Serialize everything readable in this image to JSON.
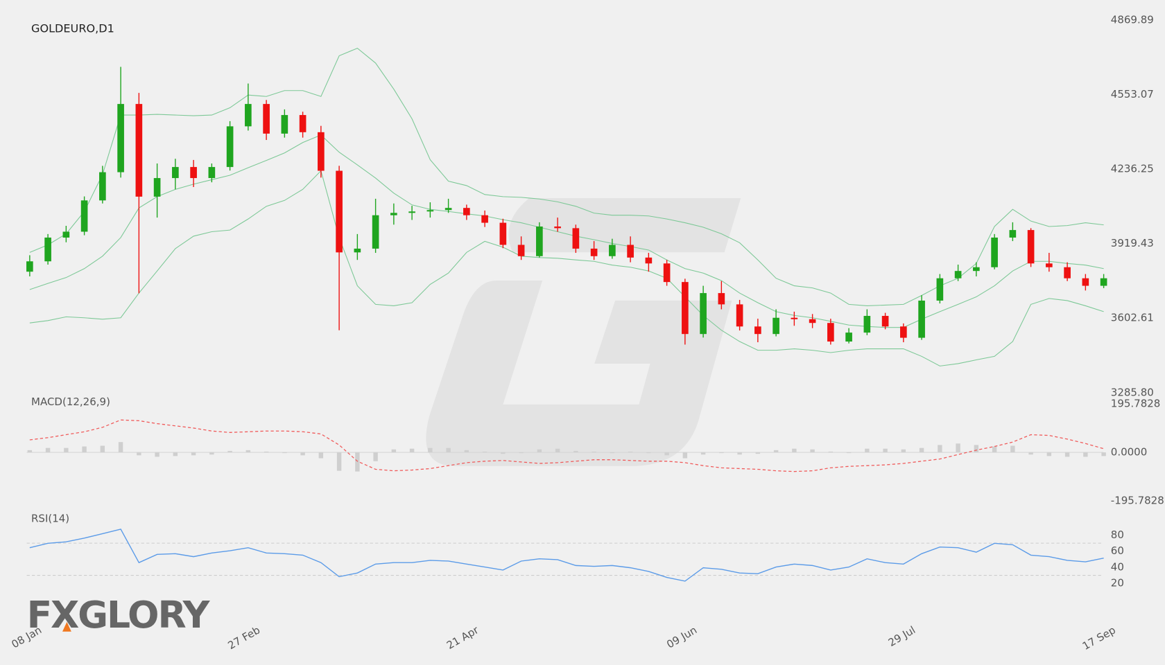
{
  "chart_data": [
    {
      "type": "candlestick",
      "title": "GOLDEURO,D1",
      "categories": [
        "08 Jan",
        null,
        null,
        null,
        null,
        null,
        null,
        null,
        null,
        null,
        null,
        null,
        "27 Feb",
        null,
        null,
        null,
        null,
        null,
        null,
        null,
        null,
        null,
        null,
        null,
        "21 Apr",
        null,
        null,
        null,
        null,
        null,
        null,
        null,
        null,
        null,
        null,
        null,
        "09 Jun",
        null,
        null,
        null,
        null,
        null,
        null,
        null,
        null,
        null,
        null,
        null,
        "29 Jul",
        null,
        null,
        null,
        null,
        null,
        null,
        null,
        null,
        null,
        null,
        "17 Sep"
      ],
      "open": [
        3800,
        3844,
        3945,
        3970,
        4103,
        4223,
        4513,
        4119,
        4198,
        4245,
        4198,
        4245,
        4418,
        4513,
        4387,
        4466,
        4393,
        4229,
        3882,
        3898,
        4040,
        4050,
        4056,
        4062,
        4071,
        4040,
        4008,
        3914,
        3866,
        3992,
        3985,
        3898,
        3866,
        3914,
        3860,
        3835,
        3756,
        3535,
        3709,
        3661,
        3567,
        3535,
        3604,
        3598,
        3582,
        3503,
        3541,
        3612,
        3567,
        3519,
        3677,
        3772,
        3803,
        3819,
        3945,
        3977,
        3835,
        3819,
        3772,
        3740
      ],
      "high": [
        3870,
        3960,
        3995,
        4120,
        4250,
        4671,
        4560,
        4260,
        4280,
        4275,
        4260,
        4440,
        4600,
        4530,
        4490,
        4480,
        4420,
        4250,
        3960,
        4110,
        4090,
        4080,
        4095,
        4110,
        4085,
        4060,
        4025,
        3950,
        4010,
        4030,
        4000,
        3930,
        3940,
        3950,
        3880,
        3850,
        3770,
        3740,
        3760,
        3680,
        3600,
        3640,
        3630,
        3620,
        3600,
        3560,
        3640,
        3625,
        3580,
        3700,
        3790,
        3830,
        3840,
        3960,
        4010,
        3985,
        3880,
        3840,
        3790,
        3790
      ],
      "low": [
        3780,
        3830,
        3925,
        3955,
        4090,
        4200,
        3708,
        4030,
        4150,
        4160,
        4180,
        4230,
        4400,
        4360,
        4370,
        4370,
        4200,
        3551,
        3850,
        3880,
        4000,
        4020,
        4030,
        4050,
        4020,
        3990,
        3900,
        3850,
        3860,
        3970,
        3880,
        3850,
        3855,
        3840,
        3800,
        3740,
        3490,
        3520,
        3640,
        3550,
        3500,
        3525,
        3570,
        3560,
        3490,
        3495,
        3530,
        3555,
        3500,
        3510,
        3665,
        3760,
        3780,
        3810,
        3930,
        3820,
        3800,
        3760,
        3720,
        3730
      ],
      "close": [
        3844,
        3945,
        3970,
        4103,
        4223,
        4513,
        4119,
        4198,
        4245,
        4198,
        4245,
        4418,
        4513,
        4387,
        4466,
        4393,
        4229,
        3882,
        3898,
        4040,
        4050,
        4056,
        4062,
        4071,
        4040,
        4008,
        3914,
        3866,
        3992,
        3985,
        3898,
        3866,
        3914,
        3860,
        3835,
        3756,
        3535,
        3709,
        3661,
        3567,
        3535,
        3604,
        3598,
        3582,
        3503,
        3541,
        3612,
        3567,
        3519,
        3677,
        3772,
        3803,
        3819,
        3945,
        3977,
        3835,
        3819,
        3772,
        3740,
        3772
      ],
      "up_color": "#1fa51f",
      "down_color": "#ee1111",
      "bands": [
        {
          "color": "#7cc896",
          "values": [
            3882,
            3914,
            3961,
            4056,
            4213,
            4466,
            4466,
            4469,
            4466,
            4463,
            4466,
            4497,
            4551,
            4545,
            4570,
            4570,
            4545,
            4718,
            4750,
            4687,
            4576,
            4450,
            4276,
            4185,
            4166,
            4128,
            4119,
            4116,
            4109,
            4097,
            4078,
            4049,
            4040,
            4040,
            4037,
            4024,
            4008,
            3989,
            3961,
            3923,
            3850,
            3772,
            3740,
            3731,
            3709,
            3661,
            3655,
            3658,
            3661,
            3699,
            3740,
            3772,
            3835,
            3992,
            4065,
            4015,
            3992,
            3996,
            4008,
            3999
          ]
        },
        {
          "color": "#7cc896",
          "values": [
            3724,
            3750,
            3775,
            3813,
            3866,
            3945,
            4071,
            4119,
            4150,
            4172,
            4191,
            4210,
            4242,
            4273,
            4305,
            4349,
            4381,
            4308,
            4254,
            4198,
            4134,
            4084,
            4065,
            4056,
            4046,
            4037,
            4021,
            4008,
            3989,
            3970,
            3951,
            3936,
            3920,
            3907,
            3892,
            3850,
            3813,
            3794,
            3762,
            3709,
            3668,
            3630,
            3614,
            3604,
            3589,
            3573,
            3567,
            3563,
            3563,
            3598,
            3630,
            3661,
            3693,
            3740,
            3803,
            3844,
            3844,
            3835,
            3828,
            3813
          ]
        },
        {
          "color": "#7cc896",
          "values": [
            3582,
            3592,
            3608,
            3604,
            3598,
            3604,
            3709,
            3803,
            3898,
            3951,
            3970,
            3977,
            4024,
            4078,
            4103,
            4150,
            4229,
            3945,
            3740,
            3661,
            3655,
            3668,
            3746,
            3794,
            3882,
            3929,
            3904,
            3866,
            3860,
            3857,
            3850,
            3844,
            3828,
            3819,
            3803,
            3772,
            3693,
            3614,
            3551,
            3503,
            3466,
            3466,
            3472,
            3466,
            3456,
            3466,
            3472,
            3472,
            3472,
            3440,
            3399,
            3409,
            3425,
            3440,
            3503,
            3661,
            3686,
            3677,
            3655,
            3630
          ]
        }
      ],
      "ylim": [
        3285.8,
        4869.89
      ],
      "yticks": [
        {
          "value": 3285.8,
          "label": "3285.80"
        },
        3602.61,
        3919.43,
        4236.25,
        4553.07,
        4869.89
      ]
    },
    {
      "type": "macd",
      "title": "MACD(12,26,9)",
      "histogram": {
        "color": "#cfcfcf",
        "values": [
          8.9,
          17.8,
          17.8,
          23.7,
          26.7,
          41.5,
          -11.9,
          -17.8,
          -14.8,
          -11.9,
          -8.9,
          5.9,
          8.9,
          3,
          -3,
          -11.9,
          -23.7,
          -74.2,
          -77.1,
          -35.6,
          11.9,
          14.8,
          17.8,
          17.8,
          8.9,
          3,
          -5.9,
          -3,
          11.9,
          14.8,
          5.9,
          3,
          -3,
          3,
          -3,
          -11.9,
          -23.7,
          -8.9,
          -3,
          -8.9,
          -5.9,
          8.9,
          14.8,
          11.9,
          3,
          -3,
          14.8,
          14.8,
          11.9,
          17.8,
          29.7,
          35.6,
          29.7,
          23.7,
          26.7,
          -8.9,
          -14.8,
          -17.8,
          -17.8,
          -14.8
        ]
      },
      "series": [
        {
          "color": "#f05a5a",
          "dashed": true,
          "values": [
            50.4,
            59.3,
            71.2,
            83,
            100.8,
            130.5,
            127.5,
            115.7,
            106.8,
            97.9,
            86,
            80.1,
            83,
            86,
            86,
            83,
            74.2,
            29.7,
            -35.6,
            -68.2,
            -74.2,
            -71.2,
            -65.3,
            -53.4,
            -41.5,
            -35.6,
            -32.6,
            -38.6,
            -44.5,
            -41.5,
            -35.6,
            -29.7,
            -29.7,
            -32.6,
            -35.6,
            -35.6,
            -41.5,
            -53.4,
            -62.3,
            -65.3,
            -68.2,
            -74.2,
            -77.1,
            -74.2,
            -62.3,
            -56.4,
            -53.4,
            -50.4,
            -44.5,
            -35.6,
            -26.7,
            -8.9,
            8.9,
            23.7,
            41.5,
            71.2,
            68.2,
            53.4,
            35.6,
            14.8
          ]
        }
      ],
      "ylim": [
        -195.7828,
        195.7828
      ],
      "yticks": [
        -195.7828,
        {
          "value": 0,
          "label": "0.0000"
        },
        195.7828
      ]
    },
    {
      "type": "line",
      "title": "RSI(14)",
      "series": [
        {
          "color": "#5b9be8",
          "values": [
            64.3,
            69.8,
            71.7,
            76.3,
            81.8,
            87.4,
            45.8,
            56,
            56.9,
            53.2,
            57.8,
            60.6,
            64.3,
            57.8,
            56.9,
            55.1,
            45.8,
            28.3,
            32.9,
            44,
            45.8,
            45.8,
            48.6,
            47.7,
            44,
            40.3,
            36.6,
            47.7,
            50.5,
            49.5,
            42.2,
            41.2,
            42.2,
            39.4,
            34.8,
            27.4,
            22.8,
            39.4,
            37.5,
            32.9,
            32,
            40.3,
            44,
            42.2,
            36.6,
            40.3,
            50.5,
            45.8,
            44,
            56.9,
            65.2,
            64.3,
            58.8,
            69.8,
            68,
            55.1,
            53.2,
            48.6,
            46.8,
            51.4
          ]
        }
      ],
      "levels": [
        30,
        70
      ],
      "ylim": [
        20,
        80
      ],
      "yticks": [
        20,
        40,
        60,
        80
      ]
    }
  ],
  "logo": "FXGLORY"
}
